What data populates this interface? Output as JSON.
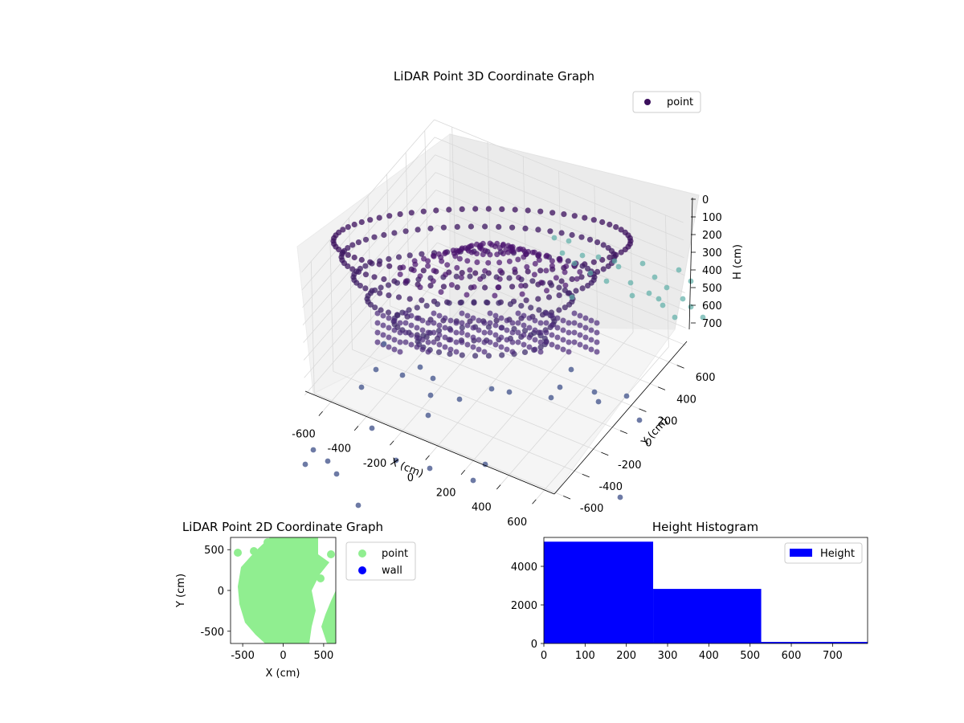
{
  "figure": {
    "background": "#ffffff"
  },
  "chart_data": [
    {
      "id": "lidar-3d",
      "type": "scatter",
      "projection": "3d",
      "title": "LiDAR Point 3D Coordinate Graph",
      "xlabel": "X (cm)",
      "ylabel": "Y (cm)",
      "zlabel": "H (cm)",
      "xlim": [
        -700,
        700
      ],
      "ylim": [
        -700,
        700
      ],
      "zlim": [
        0,
        750
      ],
      "zaxis_inverted": true,
      "xticks": [
        -600,
        -400,
        -200,
        0,
        200,
        400,
        600
      ],
      "yticks": [
        -600,
        -400,
        -200,
        0,
        200,
        400,
        600
      ],
      "zticks": [
        0,
        100,
        200,
        300,
        400,
        500,
        600,
        700
      ],
      "grid": true,
      "legend": {
        "position": "upper-right",
        "entries": [
          "point"
        ]
      },
      "colormap": "viridis",
      "point_color_low": "#3b0f5c",
      "point_color_high": "#5fbfae",
      "series": [
        {
          "name": "point",
          "description_rings": [
            {
              "radius": 520,
              "h": 720,
              "x_range": [
                -520,
                520
              ]
            },
            {
              "radius": 480,
              "h": 560,
              "x_range": [
                -480,
                480
              ]
            },
            {
              "radius": 430,
              "h": 430,
              "x_range": [
                -430,
                430
              ]
            },
            {
              "radius": 380,
              "h": 300,
              "x_range": [
                -380,
                380
              ]
            },
            {
              "radius": 330,
              "h": 180,
              "x_range": [
                -330,
                330
              ]
            }
          ]
        }
      ]
    },
    {
      "id": "lidar-2d",
      "type": "scatter",
      "title": "LiDAR Point 2D Coordinate Graph",
      "xlabel": "X (cm)",
      "ylabel": "Y (cm)",
      "xlim": [
        -650,
        650
      ],
      "ylim": [
        -650,
        650
      ],
      "xticks": [
        -500,
        0,
        500
      ],
      "yticks": [
        -500,
        0,
        500
      ],
      "legend": {
        "position": "outside-right",
        "entries": [
          "point",
          "wall"
        ]
      },
      "series": [
        {
          "name": "point",
          "color": "#90ee90"
        },
        {
          "name": "wall",
          "color": "#0000ff"
        }
      ]
    },
    {
      "id": "height-histogram",
      "type": "bar",
      "title": "Height Histogram",
      "xlim": [
        0,
        785
      ],
      "ylim": [
        0,
        5500
      ],
      "xticks": [
        0,
        100,
        200,
        300,
        400,
        500,
        600,
        700
      ],
      "yticks": [
        0,
        2000,
        4000
      ],
      "legend": {
        "position": "upper-right",
        "entries": [
          "Height"
        ]
      },
      "bins": [
        {
          "start": 0,
          "end": 265,
          "count": 5280
        },
        {
          "start": 265,
          "end": 527,
          "count": 2830
        },
        {
          "start": 527,
          "end": 785,
          "count": 80
        }
      ],
      "series": [
        {
          "name": "Height",
          "color": "#0000ff"
        }
      ]
    }
  ]
}
